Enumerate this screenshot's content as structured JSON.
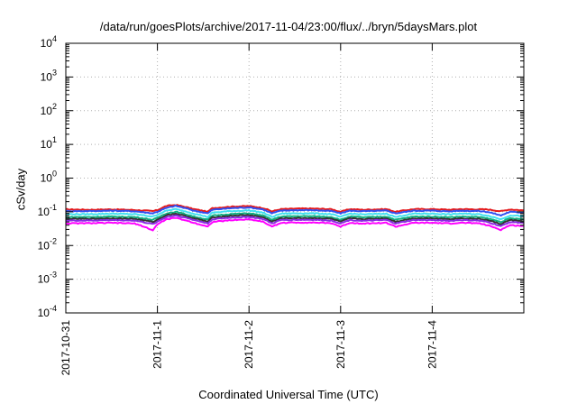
{
  "chart_data": {
    "type": "line",
    "title": "/data/run/goesPlots/archive/2017-11-04/23:00/flux/../bryn/5daysMars.plot",
    "xlabel": "Coordinated Universal Time (UTC)",
    "ylabel": "cSv/day",
    "yscale": "log",
    "ylim": [
      0.0001,
      10000
    ],
    "xlim": [
      "2017-10-31",
      "2017-11-05"
    ],
    "grid": true,
    "legend": "none",
    "x_ticks": [
      "2017-10-31",
      "2017-11-1",
      "2017-11-2",
      "2017-11-3",
      "2017-11-4"
    ],
    "y_ticks": [
      {
        "base": "10",
        "exp": "-4"
      },
      {
        "base": "10",
        "exp": "-3"
      },
      {
        "base": "10",
        "exp": "-2"
      },
      {
        "base": "10",
        "exp": "-1"
      },
      {
        "base": "10",
        "exp": "0"
      },
      {
        "base": "10",
        "exp": "1"
      },
      {
        "base": "10",
        "exp": "2"
      },
      {
        "base": "10",
        "exp": "3"
      },
      {
        "base": "10",
        "exp": "4"
      }
    ],
    "x_days": [
      0,
      0.25,
      0.5,
      0.75,
      0.95,
      1.0,
      1.1,
      1.2,
      1.4,
      1.55,
      1.6,
      1.8,
      2.0,
      2.15,
      2.25,
      2.35,
      2.5,
      2.7,
      2.9,
      3.0,
      3.1,
      3.25,
      3.5,
      3.6,
      3.8,
      4.0,
      4.2,
      4.3,
      4.5,
      4.6,
      4.75,
      4.85,
      5.0
    ],
    "series": [
      {
        "color": "#e41a1c",
        "values": [
          0.118,
          0.115,
          0.118,
          0.113,
          0.105,
          0.112,
          0.15,
          0.16,
          0.12,
          0.1,
          0.128,
          0.142,
          0.148,
          0.13,
          0.103,
          0.12,
          0.124,
          0.125,
          0.119,
          0.1,
          0.12,
          0.115,
          0.12,
          0.1,
          0.12,
          0.12,
          0.115,
          0.12,
          0.118,
          0.118,
          0.104,
          0.118,
          0.11
        ]
      },
      {
        "color": "#3050f0",
        "values": [
          0.105,
          0.105,
          0.108,
          0.104,
          0.09,
          0.1,
          0.13,
          0.15,
          0.108,
          0.09,
          0.115,
          0.128,
          0.135,
          0.118,
          0.09,
          0.108,
          0.112,
          0.112,
          0.105,
          0.09,
          0.108,
          0.104,
          0.108,
          0.09,
          0.108,
          0.108,
          0.103,
          0.108,
          0.106,
          0.1,
          0.078,
          0.1,
          0.095
        ]
      },
      {
        "color": "#40e0f0",
        "values": [
          0.085,
          0.085,
          0.088,
          0.085,
          0.072,
          0.082,
          0.108,
          0.12,
          0.088,
          0.07,
          0.094,
          0.105,
          0.11,
          0.095,
          0.07,
          0.088,
          0.09,
          0.09,
          0.085,
          0.07,
          0.088,
          0.084,
          0.088,
          0.07,
          0.088,
          0.088,
          0.084,
          0.088,
          0.085,
          0.078,
          0.06,
          0.078,
          0.075
        ]
      },
      {
        "color": "#10b080",
        "values": [
          0.07,
          0.07,
          0.072,
          0.07,
          0.058,
          0.066,
          0.09,
          0.1,
          0.072,
          0.058,
          0.077,
          0.086,
          0.09,
          0.078,
          0.058,
          0.072,
          0.074,
          0.074,
          0.07,
          0.058,
          0.072,
          0.069,
          0.072,
          0.058,
          0.072,
          0.072,
          0.069,
          0.072,
          0.07,
          0.064,
          0.05,
          0.064,
          0.06
        ]
      },
      {
        "color": "#333333",
        "values": [
          0.062,
          0.062,
          0.064,
          0.062,
          0.05,
          0.058,
          0.08,
          0.088,
          0.064,
          0.051,
          0.068,
          0.076,
          0.08,
          0.069,
          0.051,
          0.064,
          0.065,
          0.065,
          0.062,
          0.051,
          0.064,
          0.061,
          0.064,
          0.051,
          0.064,
          0.064,
          0.061,
          0.064,
          0.062,
          0.057,
          0.043,
          0.057,
          0.053
        ]
      },
      {
        "color": "#8a2be2",
        "values": [
          0.055,
          0.055,
          0.057,
          0.055,
          0.043,
          0.051,
          0.07,
          0.078,
          0.057,
          0.045,
          0.06,
          0.067,
          0.071,
          0.061,
          0.045,
          0.057,
          0.058,
          0.058,
          0.055,
          0.045,
          0.057,
          0.054,
          0.057,
          0.045,
          0.057,
          0.057,
          0.054,
          0.057,
          0.055,
          0.05,
          0.037,
          0.05,
          0.047
        ]
      },
      {
        "color": "#ff00ff",
        "values": [
          0.045,
          0.046,
          0.047,
          0.045,
          0.028,
          0.042,
          0.06,
          0.066,
          0.047,
          0.036,
          0.05,
          0.056,
          0.06,
          0.051,
          0.036,
          0.047,
          0.048,
          0.048,
          0.046,
          0.036,
          0.047,
          0.045,
          0.047,
          0.036,
          0.047,
          0.047,
          0.045,
          0.047,
          0.046,
          0.04,
          0.029,
          0.04,
          0.038
        ]
      }
    ]
  }
}
